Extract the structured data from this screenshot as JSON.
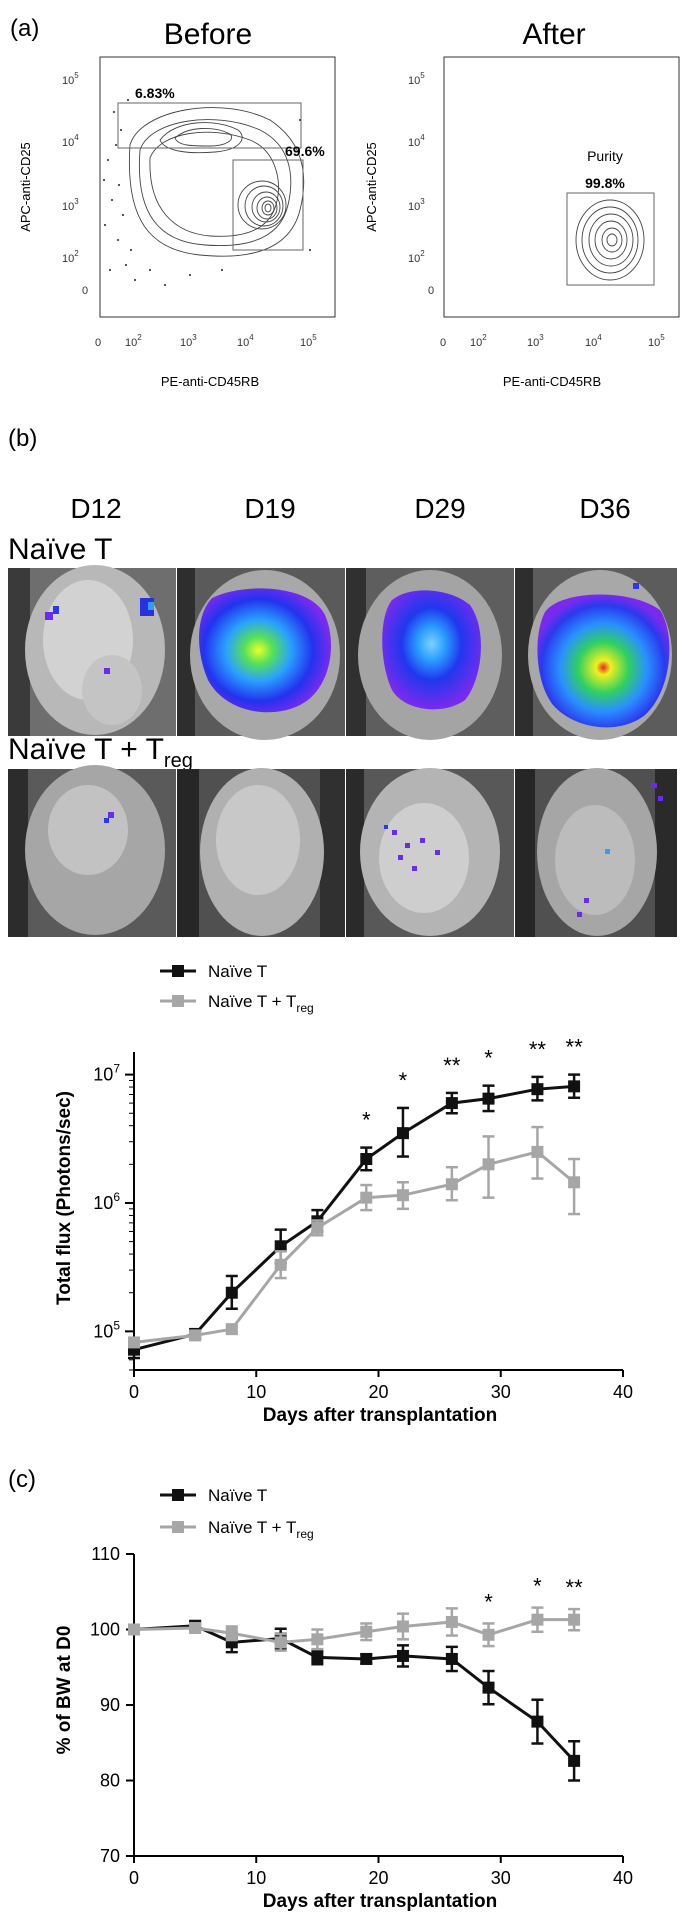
{
  "panels": {
    "a": {
      "label": "(a)"
    },
    "b": {
      "label": "(b)"
    },
    "c": {
      "label": "(c)"
    }
  },
  "flow": {
    "before": {
      "title": "Before",
      "ylabel": "APC-anti-CD25",
      "xlabel": "PE-anti-CD45RB",
      "gates": [
        {
          "label": "6.83%"
        },
        {
          "label": "69.6%"
        }
      ]
    },
    "after": {
      "title": "After",
      "ylabel": "APC-anti-CD25",
      "xlabel": "PE-anti-CD45RB",
      "gate_title": "Purity",
      "gate_value": "99.8%"
    }
  },
  "imaging": {
    "days": [
      "D12",
      "D19",
      "D29",
      "D36"
    ],
    "groups": [
      {
        "name": "Naïve T",
        "sub": ""
      },
      {
        "name": "Naïve T + T",
        "sub": "reg"
      }
    ]
  },
  "chart_data": [
    {
      "type": "line",
      "xlabel": "Days after transplantation",
      "ylabel": "Total flux (Photons/sec)",
      "xlim": [
        0,
        40
      ],
      "ylim": [
        50000,
        15000000
      ],
      "yscale": "log",
      "xticks": [
        0,
        10,
        20,
        30,
        40
      ],
      "yticks": [
        "10^5",
        "10^6",
        "10^7"
      ],
      "legend": "top-left",
      "series": [
        {
          "name": "Naïve T",
          "color": "#111111",
          "x": [
            0,
            5,
            8,
            12,
            15,
            19,
            22,
            26,
            29,
            33,
            36
          ],
          "y": [
            72000,
            95000,
            200000,
            460000,
            720000,
            2200000,
            3500000,
            6000000,
            6500000,
            7700000,
            8100000
          ],
          "err": [
            [
              62000,
              85000
            ],
            [
              88000,
              104000
            ],
            [
              150000,
              270000
            ],
            [
              340000,
              620000
            ],
            [
              600000,
              880000
            ],
            [
              1800000,
              2700000
            ],
            [
              2300000,
              5500000
            ],
            [
              5000000,
              7200000
            ],
            [
              5200000,
              8200000
            ],
            [
              6300000,
              9600000
            ],
            [
              6600000,
              10000000
            ]
          ]
        },
        {
          "name": "Naïve T + T_reg",
          "color": "#a6a6a6",
          "x": [
            0,
            5,
            8,
            12,
            15,
            19,
            22,
            26,
            29,
            33,
            36
          ],
          "y": [
            82000,
            93000,
            104000,
            330000,
            640000,
            1100000,
            1150000,
            1400000,
            2000000,
            2500000,
            1450000
          ],
          "err": [
            [
              76000,
              89000
            ],
            [
              88000,
              98000
            ],
            [
              98000,
              110000
            ],
            [
              260000,
              420000
            ],
            [
              560000,
              730000
            ],
            [
              880000,
              1380000
            ],
            [
              900000,
              1450000
            ],
            [
              1050000,
              1900000
            ],
            [
              1100000,
              3300000
            ],
            [
              1550000,
              3900000
            ],
            [
              820000,
              2200000
            ]
          ]
        }
      ],
      "annotations": [
        {
          "x": 19,
          "text": "*"
        },
        {
          "x": 22,
          "text": "*"
        },
        {
          "x": 26,
          "text": "**"
        },
        {
          "x": 29,
          "text": "*"
        },
        {
          "x": 33,
          "text": "**"
        },
        {
          "x": 36,
          "text": "**"
        }
      ]
    },
    {
      "type": "line",
      "xlabel": "Days after transplantation",
      "ylabel": "% of BW at D0",
      "xlim": [
        0,
        40
      ],
      "ylim": [
        70,
        110
      ],
      "xticks": [
        0,
        10,
        20,
        30,
        40
      ],
      "yticks": [
        70,
        80,
        90,
        100,
        110
      ],
      "legend": "top-left",
      "series": [
        {
          "name": "Naïve T",
          "color": "#111111",
          "x": [
            0,
            5,
            8,
            12,
            15,
            19,
            22,
            26,
            29,
            33,
            36
          ],
          "y": [
            100,
            100.5,
            98.3,
            98.8,
            96.3,
            96.1,
            96.5,
            96.1,
            92.3,
            87.8,
            82.6
          ],
          "err": [
            0.4,
            0.5,
            1.3,
            1.3,
            0.9,
            0.6,
            1.4,
            1.6,
            2.2,
            2.9,
            2.6
          ]
        },
        {
          "name": "Naïve T + T_reg",
          "color": "#a6a6a6",
          "x": [
            0,
            5,
            8,
            12,
            15,
            19,
            22,
            26,
            29,
            33,
            36
          ],
          "y": [
            100,
            100.2,
            99.5,
            98.3,
            98.7,
            99.7,
            100.4,
            101,
            99.3,
            101.3,
            101.3
          ],
          "err": [
            0.4,
            0.5,
            0.9,
            1.1,
            1.3,
            1.1,
            1.7,
            1.8,
            1.5,
            1.6,
            1.4
          ]
        }
      ],
      "annotations": [
        {
          "x": 29,
          "text": "*"
        },
        {
          "x": 33,
          "text": "*"
        },
        {
          "x": 36,
          "text": "**"
        }
      ]
    }
  ]
}
